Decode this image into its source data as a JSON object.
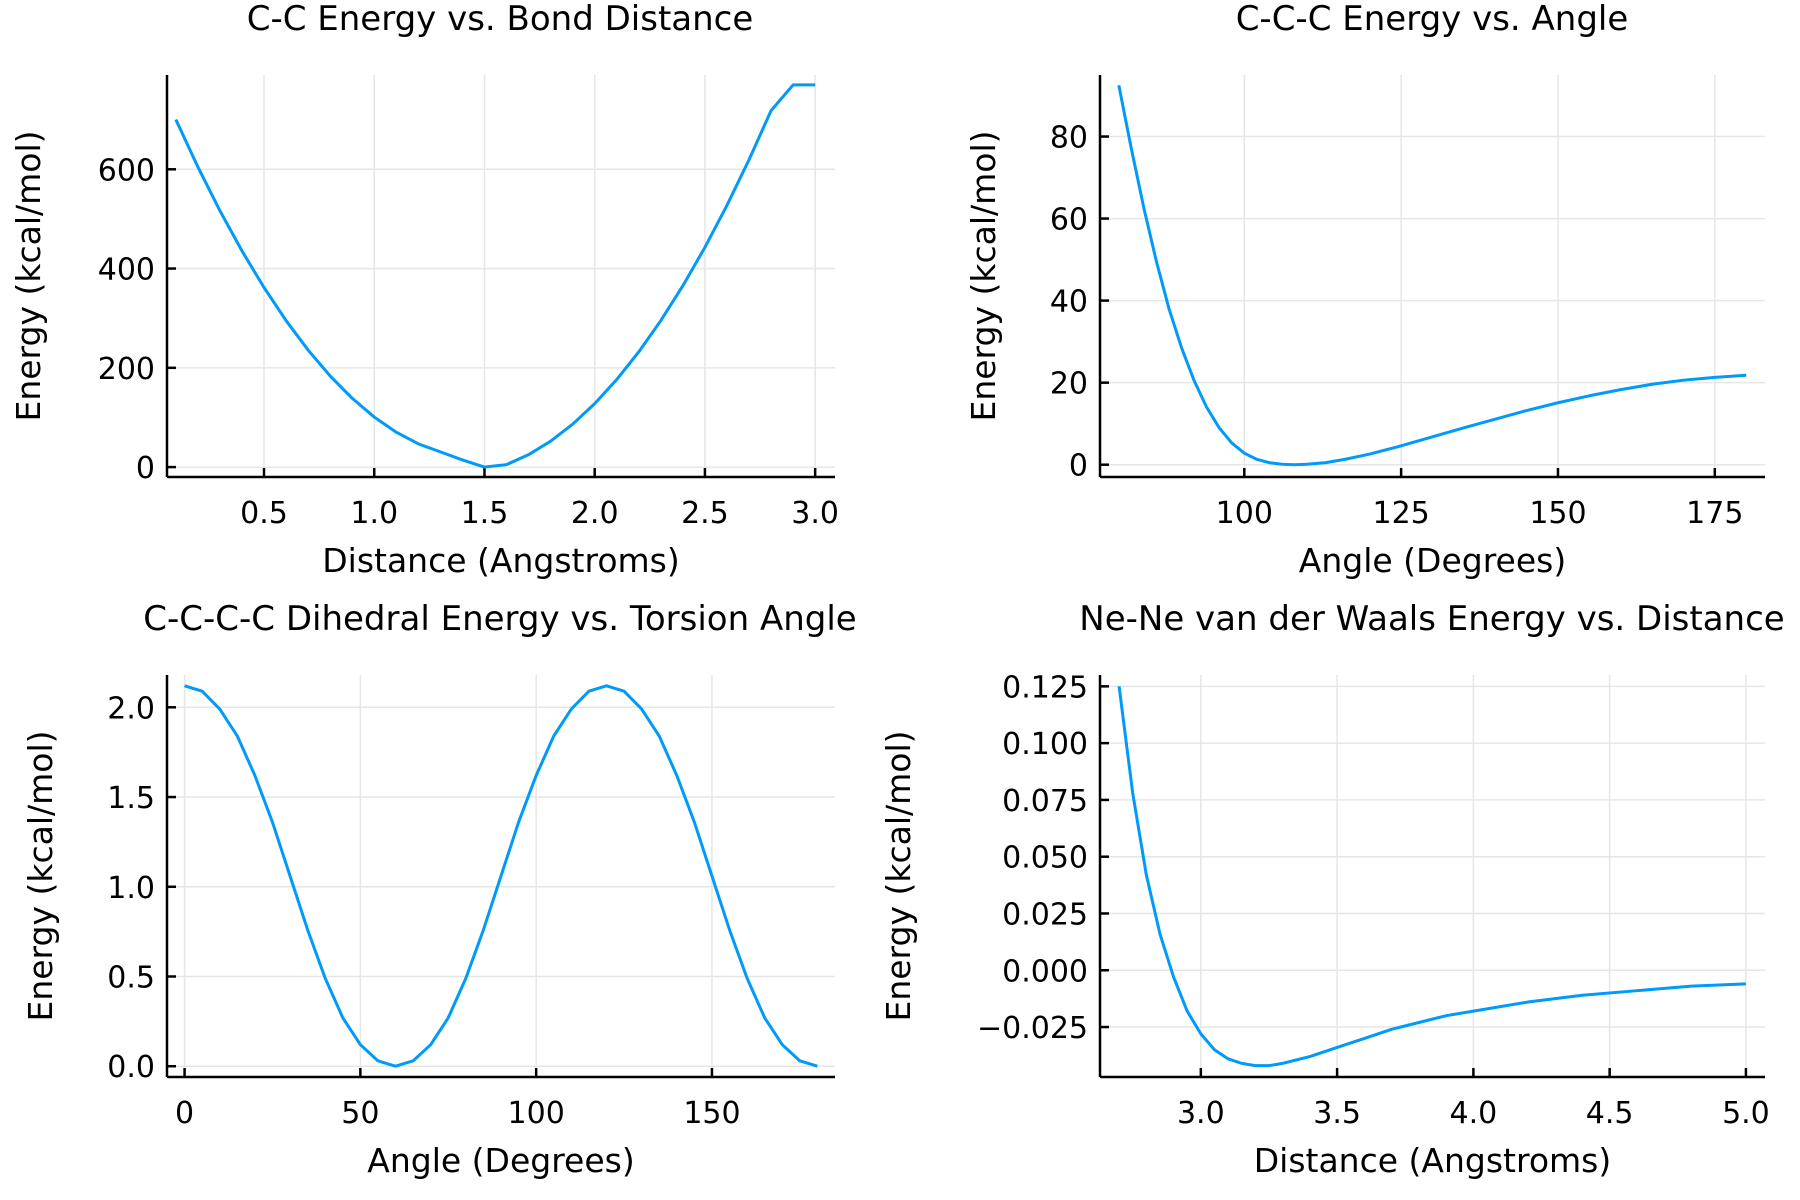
{
  "colors": {
    "series": "#009af9",
    "grid": "#e6e6e6",
    "axis": "#000000"
  },
  "chart_data": [
    {
      "type": "line",
      "title": "C-C Energy vs. Bond Distance",
      "xlabel": "Distance (Angstroms)",
      "ylabel": "Energy (kcal/mol)",
      "xlim": [
        0.06,
        3.09
      ],
      "ylim": [
        -20,
        790
      ],
      "xticks": [
        0.5,
        1.0,
        1.5,
        2.0,
        2.5,
        3.0
      ],
      "xtick_labels": [
        "0.5",
        "1.0",
        "1.5",
        "2.0",
        "2.5",
        "3.0"
      ],
      "yticks": [
        0,
        200,
        400,
        600
      ],
      "ytick_labels": [
        "0",
        "200",
        "400",
        "600"
      ],
      "grid": true,
      "legend": "none",
      "series": [
        {
          "x": [
            0.1,
            0.2,
            0.3,
            0.4,
            0.5,
            0.6,
            0.7,
            0.8,
            0.9,
            1.0,
            1.1,
            1.2,
            1.3,
            1.4,
            1.5,
            1.6,
            1.7,
            1.8,
            1.9,
            2.0,
            2.1,
            2.2,
            2.3,
            2.4,
            2.5,
            2.6,
            2.7,
            2.8,
            2.9,
            3.0
          ],
          "y": [
            700.2,
            604.8,
            516.6,
            435.6,
            361.8,
            295.2,
            235.8,
            183.6,
            138.6,
            100.8,
            70.2,
            46.8,
            30.6,
            14.4,
            0.0,
            5.0,
            25.0,
            52.2,
            86.4,
            127.8,
            176.4,
            232.2,
            295.2,
            365.4,
            442.8,
            527.4,
            619.2,
            718.2,
            770.0,
            770.0
          ]
        }
      ]
    },
    {
      "type": "line",
      "title": "C-C-C Energy vs. Angle",
      "xlabel": "Angle (Degrees)",
      "ylabel": "Energy (kcal/mol)",
      "xlim": [
        77,
        183
      ],
      "ylim": [
        -3,
        95
      ],
      "xticks": [
        100,
        125,
        150,
        175
      ],
      "xtick_labels": [
        "100",
        "125",
        "150",
        "175"
      ],
      "yticks": [
        0,
        20,
        40,
        60,
        80
      ],
      "ytick_labels": [
        "0",
        "20",
        "40",
        "60",
        "80"
      ],
      "grid": true,
      "legend": "none",
      "series": [
        {
          "x": [
            80,
            82,
            84,
            86,
            88,
            90,
            92,
            94,
            96,
            98,
            100,
            102,
            104,
            106,
            108,
            110,
            113,
            116,
            120,
            125,
            130,
            135,
            140,
            145,
            150,
            155,
            160,
            165,
            170,
            175,
            180
          ],
          "y": [
            92.5,
            77.0,
            62.5,
            49.5,
            38.0,
            28.5,
            20.5,
            14.0,
            9.0,
            5.3,
            2.8,
            1.3,
            0.5,
            0.1,
            0.0,
            0.1,
            0.5,
            1.3,
            2.6,
            4.6,
            6.8,
            9.0,
            11.1,
            13.2,
            15.1,
            16.8,
            18.3,
            19.6,
            20.6,
            21.3,
            21.8
          ]
        }
      ]
    },
    {
      "type": "line",
      "title": "C-C-C-C Dihedral Energy vs. Torsion Angle",
      "xlabel": "Angle (Degrees)",
      "ylabel": "Energy (kcal/mol)",
      "xlim": [
        -5,
        185
      ],
      "ylim": [
        -0.06,
        2.18
      ],
      "xticks": [
        0,
        50,
        100,
        150
      ],
      "xtick_labels": [
        "0",
        "50",
        "100",
        "150"
      ],
      "yticks": [
        0.0,
        0.5,
        1.0,
        1.5,
        2.0
      ],
      "ytick_labels": [
        "0.0",
        "0.5",
        "1.0",
        "1.5",
        "2.0"
      ],
      "grid": true,
      "legend": "none",
      "series": [
        {
          "x": [
            0,
            5,
            10,
            15,
            20,
            25,
            30,
            35,
            40,
            45,
            50,
            55,
            60,
            65,
            70,
            75,
            80,
            85,
            90,
            95,
            100,
            105,
            110,
            115,
            120,
            125,
            130,
            135,
            140,
            145,
            150,
            155,
            160,
            165,
            170,
            175,
            180
          ],
          "y": [
            2.12,
            2.09,
            1.99,
            1.84,
            1.62,
            1.36,
            1.06,
            0.76,
            0.49,
            0.27,
            0.12,
            0.03,
            0.0,
            0.03,
            0.12,
            0.27,
            0.49,
            0.76,
            1.06,
            1.36,
            1.62,
            1.84,
            1.99,
            2.09,
            2.12,
            2.09,
            1.99,
            1.84,
            1.62,
            1.36,
            1.06,
            0.76,
            0.49,
            0.27,
            0.12,
            0.03,
            0.0
          ]
        }
      ]
    },
    {
      "type": "line",
      "title": "Ne-Ne van der Waals Energy vs. Distance",
      "xlabel": "Distance (Angstroms)",
      "ylabel": "Energy (kcal/mol)",
      "xlim": [
        2.63,
        5.07
      ],
      "ylim": [
        -0.047,
        0.13
      ],
      "xticks": [
        3.0,
        3.5,
        4.0,
        4.5,
        5.0
      ],
      "xtick_labels": [
        "3.0",
        "3.5",
        "4.0",
        "4.5",
        "5.0"
      ],
      "yticks": [
        -0.025,
        0.0,
        0.025,
        0.05,
        0.075,
        0.1,
        0.125
      ],
      "ytick_labels": [
        "−0.025",
        "0.000",
        "0.025",
        "0.050",
        "0.075",
        "0.100",
        "0.125"
      ],
      "grid": true,
      "legend": "none",
      "series": [
        {
          "x": [
            2.7,
            2.75,
            2.8,
            2.85,
            2.9,
            2.95,
            3.0,
            3.05,
            3.1,
            3.15,
            3.2,
            3.25,
            3.3,
            3.4,
            3.5,
            3.6,
            3.7,
            3.8,
            3.9,
            4.0,
            4.2,
            4.4,
            4.6,
            4.8,
            5.0
          ],
          "y": [
            0.125,
            0.078,
            0.042,
            0.016,
            -0.003,
            -0.018,
            -0.028,
            -0.035,
            -0.039,
            -0.041,
            -0.042,
            -0.042,
            -0.041,
            -0.038,
            -0.034,
            -0.03,
            -0.026,
            -0.023,
            -0.02,
            -0.018,
            -0.014,
            -0.011,
            -0.009,
            -0.007,
            -0.006
          ]
        }
      ]
    }
  ]
}
